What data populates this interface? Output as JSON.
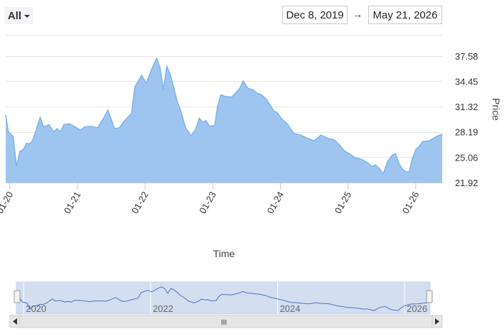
{
  "range_selector": {
    "label": "All"
  },
  "date_range": {
    "from": "Dec 8, 2019",
    "arrow": "→",
    "to": "May 21, 2026"
  },
  "colors": {
    "area_fill": "#9ec5f0",
    "area_line": "#7cb3ea",
    "navigator_fill": "#d3def0",
    "navigator_line": "#4f6fbf",
    "grid": "#e6e6e6"
  },
  "chart_data": {
    "type": "area",
    "xlabel": "Time",
    "ylabel": "Price",
    "xlim": [
      2019.94,
      2026.39
    ],
    "ylim": [
      21.92,
      37.58
    ],
    "y_ticks": [
      "21.92",
      "25.06",
      "28.19",
      "31.32",
      "34.45",
      "37.58"
    ],
    "x_ticks": [
      {
        "label": "01-20",
        "x": 2020.0
      },
      {
        "label": "01-21",
        "x": 2021.0
      },
      {
        "label": "01-22",
        "x": 2022.0
      },
      {
        "label": "01-23",
        "x": 2023.0
      },
      {
        "label": "01-24",
        "x": 2024.0
      },
      {
        "label": "01-25",
        "x": 2025.0
      },
      {
        "label": "01-26",
        "x": 2026.0
      }
    ],
    "x": [
      2019.94,
      2019.98,
      2020.05,
      2020.1,
      2020.15,
      2020.2,
      2020.25,
      2020.28,
      2020.32,
      2020.35,
      2020.4,
      2020.45,
      2020.5,
      2020.58,
      2020.65,
      2020.7,
      2020.75,
      2020.8,
      2020.88,
      2020.95,
      2021.05,
      2021.1,
      2021.2,
      2021.3,
      2021.4,
      2021.45,
      2021.55,
      2021.62,
      2021.7,
      2021.8,
      2021.85,
      2021.95,
      2022.02,
      2022.08,
      2022.12,
      2022.17,
      2022.22,
      2022.27,
      2022.32,
      2022.37,
      2022.42,
      2022.47,
      2022.52,
      2022.6,
      2022.68,
      2022.75,
      2022.8,
      2022.85,
      2022.9,
      2022.95,
      2023.03,
      2023.07,
      2023.12,
      2023.18,
      2023.28,
      2023.4,
      2023.45,
      2023.52,
      2023.6,
      2023.65,
      2023.72,
      2023.8,
      2023.9,
      2023.95,
      2024.02,
      2024.1,
      2024.2,
      2024.3,
      2024.4,
      2024.5,
      2024.6,
      2024.7,
      2024.8,
      2024.88,
      2024.95,
      2025.02,
      2025.1,
      2025.2,
      2025.3,
      2025.35,
      2025.4,
      2025.47,
      2025.52,
      2025.58,
      2025.65,
      2025.7,
      2025.75,
      2025.8,
      2025.85,
      2025.9,
      2025.95,
      2026.0,
      2026.05,
      2026.1,
      2026.2,
      2026.3,
      2026.39
    ],
    "y": [
      30.3,
      28.2,
      27.6,
      23.9,
      25.8,
      26.0,
      26.8,
      26.7,
      26.9,
      27.4,
      28.7,
      30.0,
      28.8,
      29.1,
      28.2,
      28.6,
      28.2,
      29.1,
      29.2,
      28.9,
      28.4,
      28.8,
      28.9,
      28.7,
      30.1,
      30.9,
      28.6,
      28.7,
      29.6,
      30.5,
      33.8,
      35.2,
      34.2,
      35.6,
      36.4,
      37.3,
      36.2,
      33.4,
      36.3,
      35.4,
      33.8,
      32.1,
      31.0,
      28.7,
      27.7,
      28.6,
      29.9,
      29.4,
      29.6,
      28.9,
      29.0,
      31.3,
      32.8,
      32.6,
      32.5,
      33.6,
      34.5,
      33.6,
      33.4,
      33.0,
      32.8,
      32.2,
      30.8,
      30.6,
      29.8,
      29.2,
      28.0,
      27.8,
      27.4,
      27.1,
      27.8,
      27.4,
      27.2,
      26.5,
      25.8,
      25.5,
      25.0,
      24.8,
      24.3,
      23.9,
      24.1,
      23.6,
      23.0,
      24.5,
      25.3,
      25.5,
      24.3,
      23.6,
      23.3,
      23.2,
      24.9,
      26.0,
      26.4,
      27.0,
      27.1,
      27.6,
      27.9
    ]
  },
  "navigator": {
    "year_labels": [
      "2020",
      "2022",
      "2024",
      "2026"
    ],
    "scroll_handle": "III"
  }
}
